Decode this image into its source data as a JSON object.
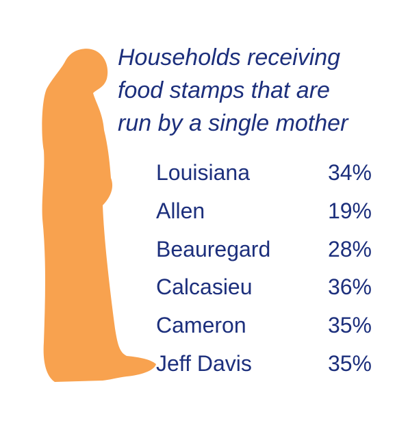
{
  "title": [
    "Households receiving",
    "food stamps that are",
    "run by a single mother"
  ],
  "table": {
    "rows": [
      [
        "Louisiana",
        "34%"
      ],
      [
        "Allen",
        "19%"
      ],
      [
        "Beauregard",
        "28%"
      ],
      [
        "Calcasieu",
        "36%"
      ],
      [
        "Cameron",
        "35%"
      ],
      [
        "Jeff Davis",
        "35%"
      ]
    ]
  }
}
